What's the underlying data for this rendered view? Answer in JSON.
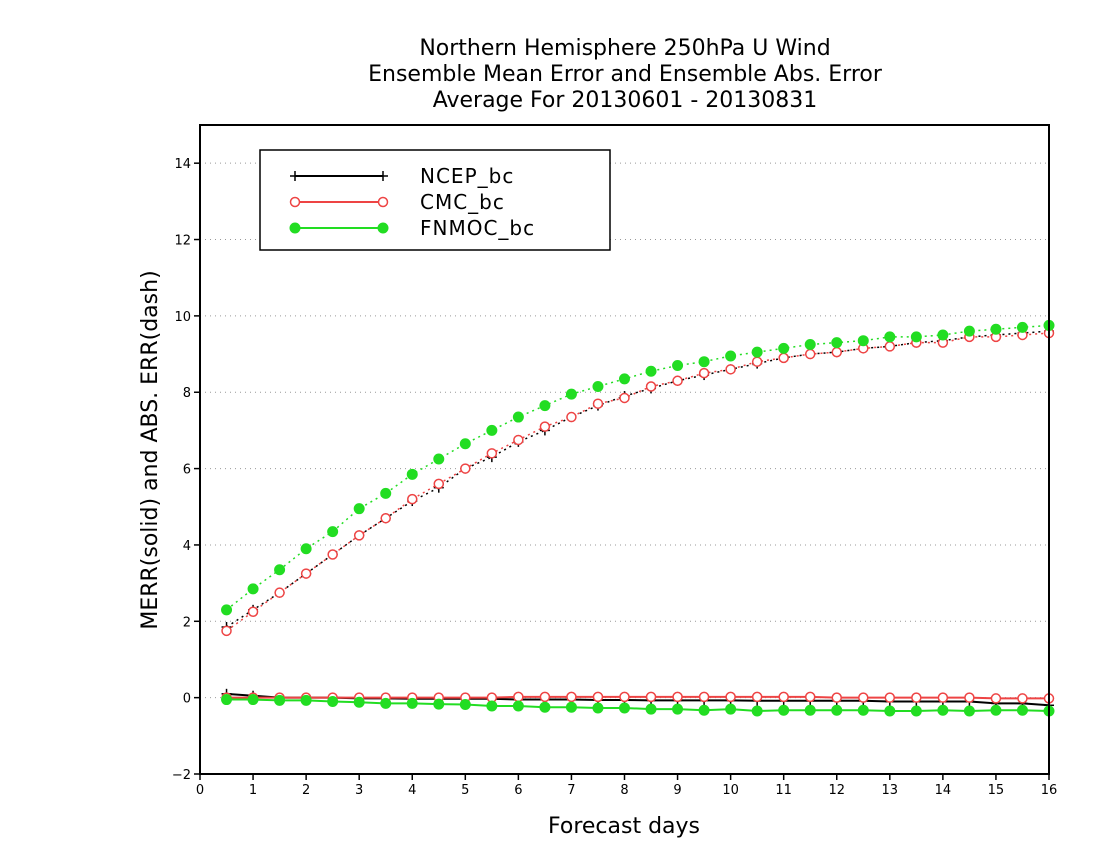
{
  "title": {
    "line1": "Northern Hemisphere 250hPa U Wind",
    "line2": "Ensemble Mean Error and Ensemble Abs. Error",
    "line3": "Average For 20130601 - 20130831"
  },
  "chart_data": {
    "type": "line",
    "xlabel": "Forecast days",
    "ylabel": "MERR(solid) and ABS. ERR(dash)",
    "xlim": [
      0,
      16
    ],
    "ylim": [
      -2,
      15
    ],
    "xticks": [
      0,
      1,
      2,
      3,
      4,
      5,
      6,
      7,
      8,
      9,
      10,
      11,
      12,
      13,
      14,
      15,
      16
    ],
    "yticks": [
      -2,
      0,
      2,
      4,
      6,
      8,
      10,
      12,
      14
    ],
    "grid": "horizontal dotted",
    "legend_position": "top-left",
    "x": [
      0.5,
      1,
      1.5,
      2,
      2.5,
      3,
      3.5,
      4,
      4.5,
      5,
      5.5,
      6,
      6.5,
      7,
      7.5,
      8,
      8.5,
      9,
      9.5,
      10,
      10.5,
      11,
      11.5,
      12,
      12.5,
      13,
      13.5,
      14,
      14.5,
      15,
      15.5,
      16
    ],
    "series": [
      {
        "name": "NCEP_bc",
        "color": "#000000",
        "marker": "plus",
        "abs_err": [
          1.85,
          2.3,
          2.75,
          3.25,
          3.75,
          4.25,
          4.7,
          5.15,
          5.5,
          6.0,
          6.3,
          6.7,
          7.0,
          7.35,
          7.65,
          7.9,
          8.1,
          8.3,
          8.45,
          8.6,
          8.75,
          8.9,
          9.0,
          9.05,
          9.15,
          9.2,
          9.3,
          9.35,
          9.45,
          9.5,
          9.55,
          9.6
        ],
        "mean_err": [
          0.1,
          0.05,
          0.0,
          0.0,
          0.0,
          -0.02,
          -0.02,
          -0.03,
          -0.03,
          -0.03,
          -0.03,
          -0.05,
          -0.05,
          -0.05,
          -0.06,
          -0.06,
          -0.07,
          -0.07,
          -0.07,
          -0.07,
          -0.08,
          -0.08,
          -0.08,
          -0.08,
          -0.08,
          -0.1,
          -0.1,
          -0.1,
          -0.1,
          -0.15,
          -0.15,
          -0.2
        ]
      },
      {
        "name": "CMC_bc",
        "color": "#ee4444",
        "marker": "open-circle",
        "abs_err": [
          1.75,
          2.25,
          2.75,
          3.25,
          3.75,
          4.25,
          4.7,
          5.2,
          5.6,
          6.0,
          6.4,
          6.75,
          7.1,
          7.35,
          7.7,
          7.85,
          8.15,
          8.3,
          8.5,
          8.6,
          8.8,
          8.9,
          9.0,
          9.05,
          9.15,
          9.2,
          9.3,
          9.3,
          9.45,
          9.45,
          9.5,
          9.55
        ],
        "mean_err": [
          0.0,
          0.0,
          0.0,
          0.0,
          0.0,
          0.0,
          0.0,
          0.0,
          0.0,
          0.0,
          0.0,
          0.02,
          0.02,
          0.02,
          0.02,
          0.02,
          0.02,
          0.02,
          0.02,
          0.02,
          0.02,
          0.02,
          0.02,
          0.0,
          0.0,
          0.0,
          0.0,
          0.0,
          0.0,
          -0.02,
          -0.02,
          -0.02
        ]
      },
      {
        "name": "FNMOC_bc",
        "color": "#22dd22",
        "marker": "filled-circle",
        "abs_err": [
          2.3,
          2.85,
          3.35,
          3.9,
          4.35,
          4.95,
          5.35,
          5.85,
          6.25,
          6.65,
          7.0,
          7.35,
          7.65,
          7.95,
          8.15,
          8.35,
          8.55,
          8.7,
          8.8,
          8.95,
          9.05,
          9.15,
          9.25,
          9.3,
          9.35,
          9.45,
          9.45,
          9.5,
          9.6,
          9.65,
          9.7,
          9.75
        ],
        "mean_err": [
          -0.05,
          -0.05,
          -0.07,
          -0.07,
          -0.1,
          -0.12,
          -0.15,
          -0.15,
          -0.17,
          -0.18,
          -0.22,
          -0.22,
          -0.25,
          -0.25,
          -0.27,
          -0.27,
          -0.3,
          -0.3,
          -0.33,
          -0.3,
          -0.35,
          -0.33,
          -0.33,
          -0.33,
          -0.33,
          -0.35,
          -0.35,
          -0.33,
          -0.35,
          -0.33,
          -0.33,
          -0.35
        ]
      }
    ]
  }
}
